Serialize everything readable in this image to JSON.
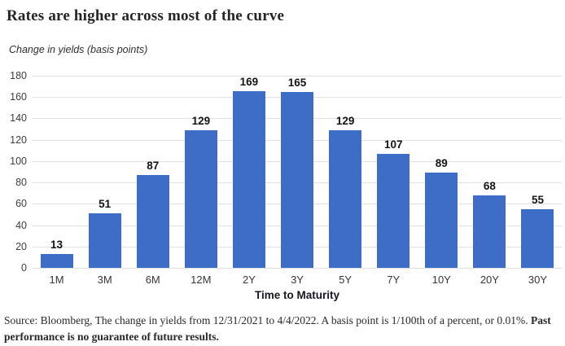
{
  "chart_data": {
    "type": "bar",
    "title": "Rates are higher across most of the curve",
    "subtitle": "Change in yields (basis points)",
    "categories": [
      "1M",
      "3M",
      "6M",
      "12M",
      "2Y",
      "3Y",
      "5Y",
      "7Y",
      "10Y",
      "20Y",
      "30Y"
    ],
    "values": [
      13,
      51,
      87,
      129,
      169,
      165,
      129,
      107,
      89,
      68,
      55
    ],
    "xlabel": "Time to Maturity",
    "ylabel": "",
    "ylim": [
      0,
      180
    ],
    "ytick_step": 20,
    "grid": true,
    "legend": "none",
    "bar_color": "#3d6dc6",
    "gridline_color": "#e1e1e1",
    "value_labels_shown": true
  },
  "footer": {
    "source_text": "Source: Bloomberg, The change in yields from 12/31/2021 to 4/4/2022. A basis point is 1/100th of a percent, or 0.01%. ",
    "bold_text": "Past performance is no guarantee of future results."
  }
}
